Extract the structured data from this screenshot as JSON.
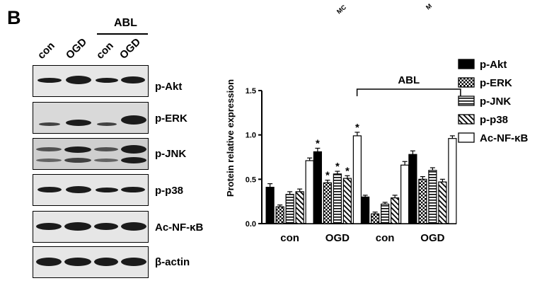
{
  "figure": {
    "panel_letter": "B",
    "cut_labels": [
      "MC",
      "M"
    ]
  },
  "western_blot": {
    "lanes": [
      "con",
      "OGD",
      "con",
      "OGD"
    ],
    "group_label": "ABL",
    "rows": [
      {
        "label": "p-Akt"
      },
      {
        "label": "p-ERK"
      },
      {
        "label": "p-JNK"
      },
      {
        "label": "p-p38"
      },
      {
        "label": "Ac-NF-κB"
      },
      {
        "label": "β-actin"
      }
    ]
  },
  "chart_data": {
    "type": "bar",
    "ylabel": "Protein relative expression",
    "ylim": [
      0,
      1.5
    ],
    "yticks": [
      "0.0",
      "0.5",
      "1.0",
      "1.5"
    ],
    "categories": [
      "con",
      "OGD",
      "con",
      "OGD"
    ],
    "group_label": "ABL",
    "series": [
      {
        "name": "p-Akt",
        "values": [
          0.41,
          0.81,
          0.3,
          0.78
        ],
        "errors": [
          0.04,
          0.04,
          0.02,
          0.04
        ],
        "significant": [
          false,
          true,
          false,
          false
        ]
      },
      {
        "name": "p-ERK",
        "values": [
          0.19,
          0.46,
          0.11,
          0.5
        ],
        "errors": [
          0.02,
          0.03,
          0.02,
          0.03
        ],
        "significant": [
          false,
          true,
          false,
          false
        ]
      },
      {
        "name": "p-JNK",
        "values": [
          0.33,
          0.56,
          0.22,
          0.6
        ],
        "errors": [
          0.03,
          0.03,
          0.02,
          0.03
        ],
        "significant": [
          false,
          true,
          false,
          false
        ]
      },
      {
        "name": "p-p38",
        "values": [
          0.36,
          0.51,
          0.29,
          0.47
        ],
        "errors": [
          0.03,
          0.03,
          0.03,
          0.03
        ],
        "significant": [
          false,
          true,
          false,
          false
        ]
      },
      {
        "name": "Ac-NF-κB",
        "values": [
          0.71,
          0.99,
          0.66,
          0.96
        ],
        "errors": [
          0.03,
          0.04,
          0.04,
          0.03
        ],
        "significant": [
          false,
          true,
          false,
          false
        ]
      }
    ],
    "significance_marker": "*",
    "legend_position": "right"
  }
}
